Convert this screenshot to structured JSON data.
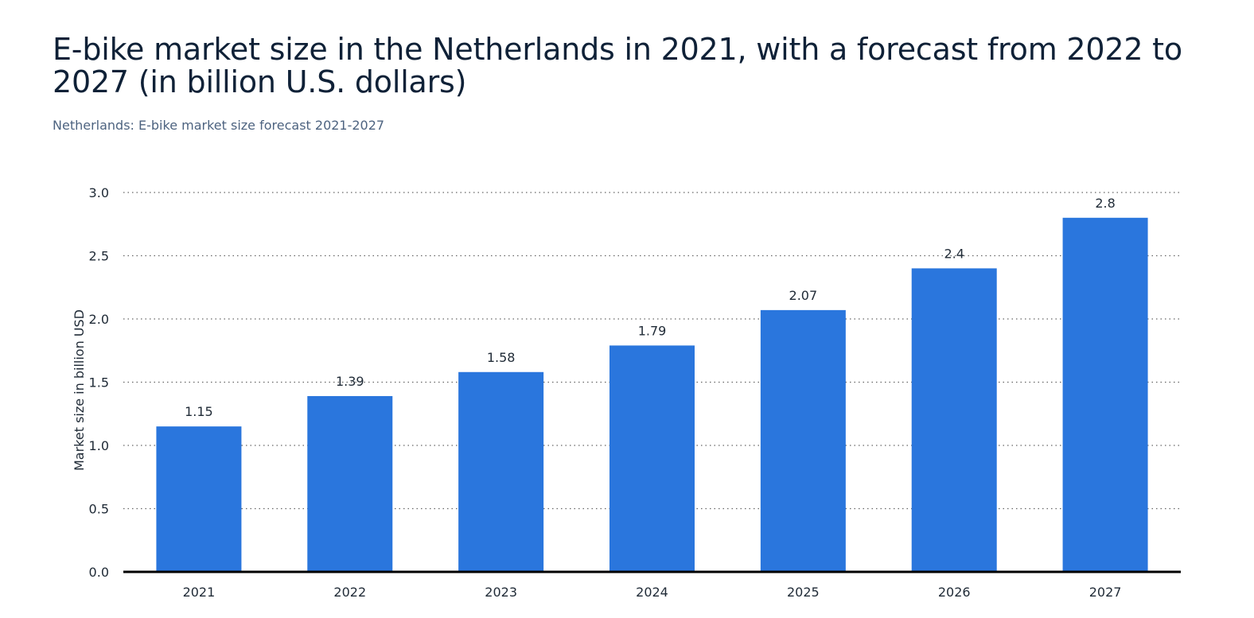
{
  "header": {
    "title": "E-bike market size in the Netherlands in 2021, with a forecast from 2022 to 2027 (in billion U.S. dollars)",
    "subtitle": "Netherlands: E-bike market size forecast 2021-2027"
  },
  "chart_data": {
    "type": "bar",
    "title": "E-bike market size in the Netherlands in 2021, with a forecast from 2022 to 2027 (in billion U.S. dollars)",
    "subtitle": "Netherlands: E-bike market size forecast 2021-2027",
    "categories": [
      "2021",
      "2022",
      "2023",
      "2024",
      "2025",
      "2026",
      "2027"
    ],
    "values": [
      1.15,
      1.39,
      1.58,
      1.79,
      2.07,
      2.4,
      2.8
    ],
    "data_labels": [
      "1.15",
      "1.39",
      "1.58",
      "1.79",
      "2.07",
      "2.4",
      "2.8"
    ],
    "xlabel": "",
    "ylabel": "Market size in billion USD",
    "ylim": [
      0,
      3
    ],
    "yticks": [
      "0.0",
      "0.5",
      "1.0",
      "1.5",
      "2.0",
      "2.5",
      "3.0"
    ],
    "grid": true,
    "legend": "none",
    "bar_color": "#2a76dd"
  }
}
